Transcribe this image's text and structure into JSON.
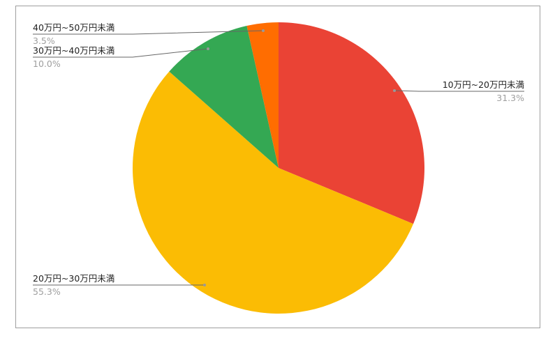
{
  "chart_data": {
    "type": "pie",
    "start_angle": "top",
    "direction": "clockwise",
    "legend": "callout labels",
    "slices": [
      {
        "label": "10万円~20万円未満",
        "value": 31.3,
        "pct_label": "31.3%",
        "color": "#EA4335"
      },
      {
        "label": "20万円~30万円未満",
        "value": 55.3,
        "pct_label": "55.3%",
        "color": "#FBBC04"
      },
      {
        "label": "30万円~40万円未満",
        "value": 10.0,
        "pct_label": "10.0%",
        "color": "#34A853"
      },
      {
        "label": "40万円~50万円未満",
        "value": 3.5,
        "pct_label": "3.5%",
        "color": "#FF6D01"
      }
    ]
  }
}
